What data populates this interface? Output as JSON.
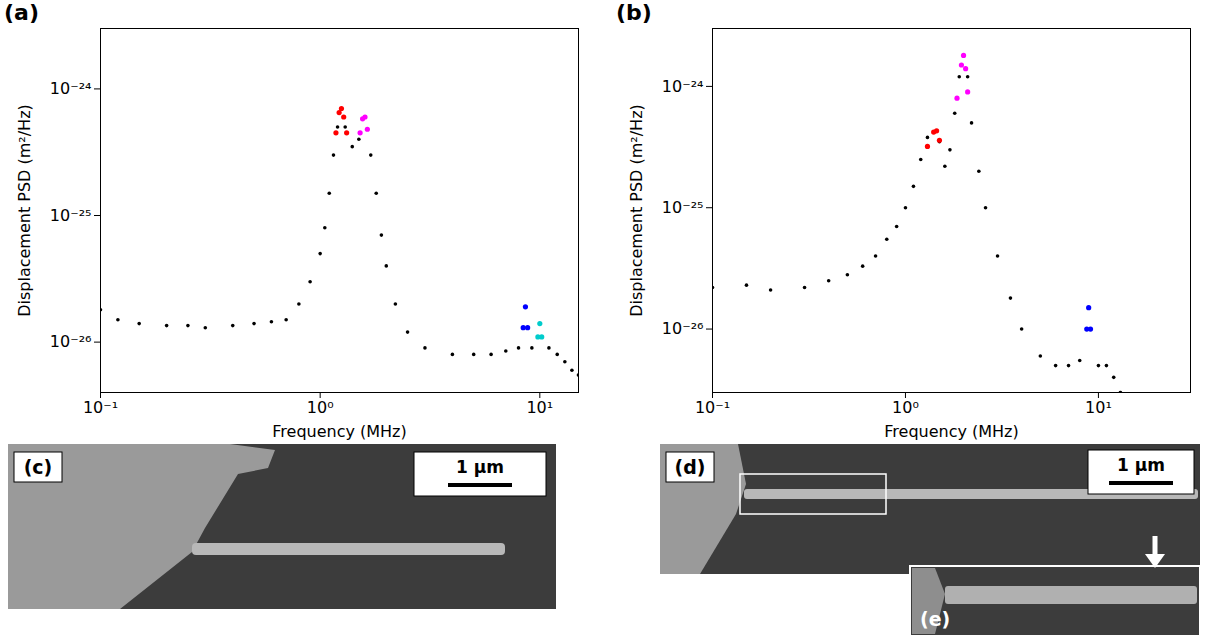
{
  "chart_data": [
    {
      "type": "scatter",
      "title": "(a)",
      "x_label": "Frequency (MHz)",
      "y_label": "Displacement PSD (m²/Hz)",
      "log": true,
      "grid": false,
      "xlim": [
        0.1,
        15
      ],
      "ylim": [
        4e-27,
        3e-24
      ],
      "xticks": [
        {
          "value": 0.1,
          "label": "10⁻¹"
        },
        {
          "value": 1,
          "label": "10⁰"
        },
        {
          "value": 10,
          "label": "10¹"
        }
      ],
      "yticks": [
        {
          "value": 1e-26,
          "label": "10⁻²⁶"
        },
        {
          "value": 1e-25,
          "label": "10⁻²⁵"
        },
        {
          "value": 1e-24,
          "label": "10⁻²⁴"
        }
      ],
      "series": [
        {
          "color": "#000000",
          "marker": "circle",
          "x": [
            0.1,
            0.12,
            0.15,
            0.2,
            0.25,
            0.3,
            0.4,
            0.5,
            0.6,
            0.7,
            0.8,
            0.9,
            1.0,
            1.05,
            1.1,
            1.15,
            1.2,
            1.25,
            1.3,
            1.4,
            1.5,
            1.6,
            1.7,
            1.8,
            1.9,
            2.0,
            2.2,
            2.5,
            3,
            4,
            5,
            6,
            7,
            8,
            8.6,
            9.2,
            10,
            11,
            12,
            13,
            14,
            15
          ],
          "values": [
            1.8e-26,
            1.5e-26,
            1.4e-26,
            1.35e-26,
            1.35e-26,
            1.3e-26,
            1.35e-26,
            1.4e-26,
            1.45e-26,
            1.5e-26,
            2e-26,
            3e-26,
            5e-26,
            8e-26,
            1.5e-25,
            3e-25,
            5e-25,
            7e-25,
            5e-25,
            3.5e-25,
            4e-25,
            6e-25,
            3e-25,
            1.5e-25,
            7e-26,
            4e-26,
            2e-26,
            1.2e-26,
            9e-27,
            8e-27,
            8e-27,
            8e-27,
            8.5e-27,
            9e-27,
            1.9e-26,
            9e-27,
            1.4e-26,
            9e-27,
            8e-27,
            7e-27,
            6e-27,
            5.5e-27
          ]
        },
        {
          "color": "#ff0000",
          "marker": "circle",
          "x": [
            1.18,
            1.22,
            1.25,
            1.28,
            1.32
          ],
          "values": [
            4.5e-25,
            6.5e-25,
            7e-25,
            6e-25,
            4.5e-25
          ]
        },
        {
          "color": "#ff00ff",
          "marker": "circle",
          "x": [
            1.52,
            1.56,
            1.6,
            1.64
          ],
          "values": [
            4.5e-25,
            5.8e-25,
            6e-25,
            4.8e-25
          ]
        },
        {
          "color": "#0000ff",
          "marker": "circle",
          "x": [
            8.4,
            8.6,
            8.8
          ],
          "values": [
            1.3e-26,
            1.9e-26,
            1.3e-26
          ]
        },
        {
          "color": "#00cccc",
          "marker": "circle",
          "x": [
            9.8,
            10,
            10.2
          ],
          "values": [
            1.1e-26,
            1.4e-26,
            1.1e-26
          ]
        }
      ]
    },
    {
      "type": "scatter",
      "title": "(b)",
      "x_label": "Frequency (MHz)",
      "y_label": "Displacement PSD (m²/Hz)",
      "log": true,
      "grid": false,
      "xlim": [
        0.1,
        30
      ],
      "ylim": [
        3e-27,
        3e-24
      ],
      "xticks": [
        {
          "value": 0.1,
          "label": "10⁻¹"
        },
        {
          "value": 1,
          "label": "10⁰"
        },
        {
          "value": 10,
          "label": "10¹"
        }
      ],
      "yticks": [
        {
          "value": 1e-26,
          "label": "10⁻²⁶"
        },
        {
          "value": 1e-25,
          "label": "10⁻²⁵"
        },
        {
          "value": 1e-24,
          "label": "10⁻²⁴"
        }
      ],
      "series": [
        {
          "color": "#000000",
          "marker": "circle",
          "x": [
            0.1,
            0.15,
            0.2,
            0.3,
            0.4,
            0.5,
            0.6,
            0.7,
            0.8,
            0.9,
            1.0,
            1.1,
            1.2,
            1.3,
            1.4,
            1.5,
            1.6,
            1.7,
            1.8,
            1.9,
            2.0,
            2.1,
            2.2,
            2.4,
            2.6,
            3,
            3.5,
            4,
            5,
            6,
            7,
            8,
            8.9,
            10,
            11,
            12,
            13
          ],
          "values": [
            2.2e-26,
            2.3e-26,
            2.1e-26,
            2.2e-26,
            2.5e-26,
            2.8e-26,
            3.3e-26,
            4e-26,
            5.5e-26,
            7e-26,
            1e-25,
            1.5e-25,
            2.5e-25,
            3.8e-25,
            4.2e-25,
            3.5e-25,
            2.2e-25,
            3e-25,
            6e-25,
            1.2e-24,
            1.8e-24,
            1.2e-24,
            5e-25,
            2e-25,
            1e-25,
            4e-26,
            1.8e-26,
            1e-26,
            6e-27,
            5e-27,
            5e-27,
            5.5e-27,
            1.5e-26,
            5e-27,
            5e-27,
            4e-27,
            3e-27
          ]
        },
        {
          "color": "#ff0000",
          "marker": "circle",
          "x": [
            1.3,
            1.4,
            1.45,
            1.5
          ],
          "values": [
            3.2e-25,
            4.2e-25,
            4.3e-25,
            3.6e-25
          ]
        },
        {
          "color": "#ff00ff",
          "marker": "circle",
          "x": [
            1.85,
            1.95,
            2.0,
            2.05,
            2.1
          ],
          "values": [
            8e-25,
            1.5e-24,
            1.8e-24,
            1.4e-24,
            9e-25
          ]
        },
        {
          "color": "#0000ff",
          "marker": "circle",
          "x": [
            8.7,
            8.9,
            9.1
          ],
          "values": [
            1e-26,
            1.5e-26,
            1e-26
          ]
        }
      ]
    }
  ],
  "images": [
    {
      "label": "(c)",
      "scale_bar": "1 µm"
    },
    {
      "label": "(d)",
      "scale_bar": "1 µm",
      "inset": {
        "label": "(e)"
      }
    }
  ]
}
